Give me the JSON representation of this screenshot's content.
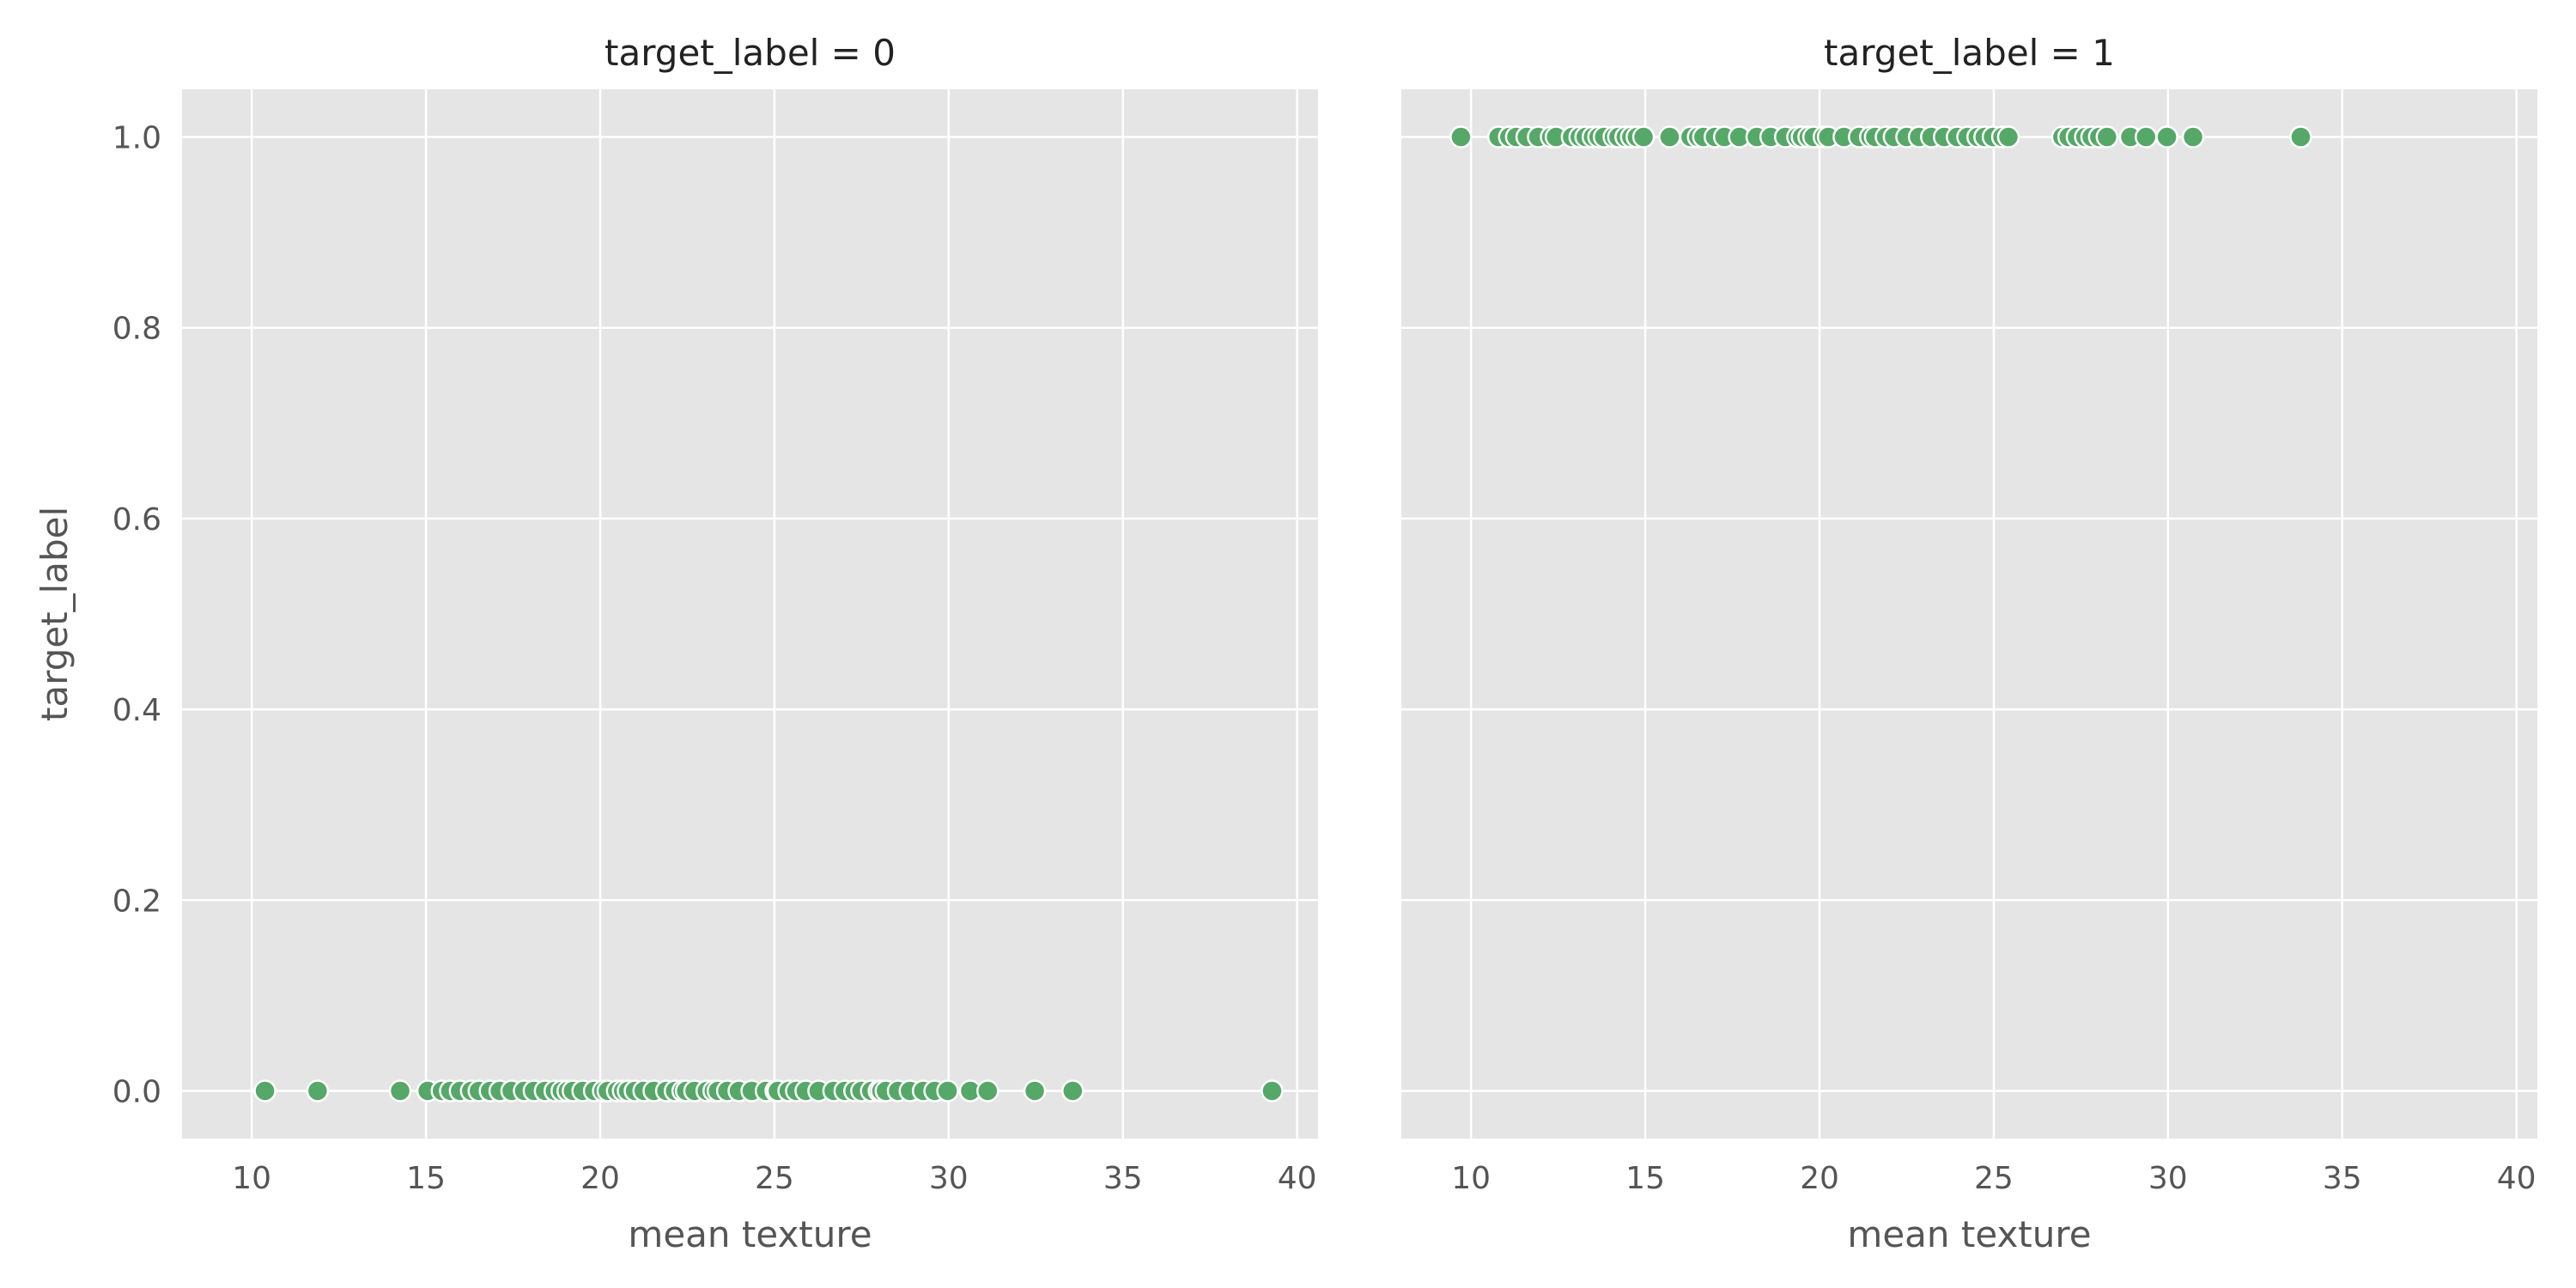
{
  "chart_data": {
    "type": "scatter",
    "grid": true,
    "shared_axes": true,
    "xlim": [
      8,
      40.6
    ],
    "ylim": [
      -0.05,
      1.05
    ],
    "x_ticks": [
      10,
      15,
      20,
      25,
      30,
      35,
      40
    ],
    "y_ticks": [
      0.0,
      0.2,
      0.4,
      0.6,
      0.8,
      1.0
    ],
    "x_tick_labels": [
      "10",
      "15",
      "20",
      "25",
      "30",
      "35",
      "40"
    ],
    "y_tick_labels": [
      "0.0",
      "0.2",
      "0.4",
      "0.6",
      "0.8",
      "1.0"
    ],
    "xlabel": "mean texture",
    "ylabel": "target_label",
    "point_color": "#55a868",
    "point_edge_color": "#ffffff",
    "background_color": "#e5e5e5",
    "grid_color": "#ffffff",
    "panels": [
      {
        "title": "target_label = 0",
        "y": 0,
        "x": [
          10.38,
          11.89,
          14.26,
          15.05,
          15.46,
          15.7,
          15.98,
          16.3,
          16.52,
          16.84,
          17.12,
          17.46,
          17.82,
          18.1,
          18.42,
          18.7,
          18.9,
          19.07,
          19.22,
          19.5,
          19.83,
          20.09,
          20.22,
          20.49,
          20.66,
          20.8,
          21.0,
          21.25,
          21.54,
          21.9,
          22.15,
          22.37,
          22.47,
          22.71,
          23.06,
          23.26,
          23.38,
          23.65,
          23.98,
          24.35,
          24.76,
          25.04,
          25.1,
          25.41,
          25.63,
          25.9,
          26.27,
          26.7,
          27.02,
          27.3,
          27.5,
          27.78,
          28.0,
          28.07,
          28.2,
          28.55,
          28.89,
          29.27,
          29.6,
          29.97,
          30.62,
          31.12,
          32.47,
          33.56,
          39.28
        ]
      },
      {
        "title": "target_label = 1",
        "y": 1,
        "x": [
          9.71,
          10.79,
          11.1,
          11.3,
          11.6,
          11.93,
          12.3,
          12.44,
          12.9,
          13.12,
          13.29,
          13.5,
          13.66,
          13.82,
          14.1,
          14.23,
          14.44,
          14.6,
          14.76,
          14.95,
          15.7,
          16.3,
          16.52,
          16.67,
          17.0,
          17.27,
          17.7,
          18.2,
          18.6,
          19.02,
          19.37,
          19.5,
          19.69,
          19.83,
          20.13,
          20.25,
          20.7,
          21.14,
          21.46,
          21.6,
          21.91,
          22.14,
          22.5,
          22.86,
          23.21,
          23.58,
          23.95,
          24.25,
          24.54,
          24.74,
          24.98,
          25.25,
          25.42,
          26.97,
          27.15,
          27.39,
          27.63,
          27.81,
          28.03,
          28.25,
          28.92,
          29.37,
          29.97,
          30.72,
          33.81
        ]
      }
    ]
  }
}
